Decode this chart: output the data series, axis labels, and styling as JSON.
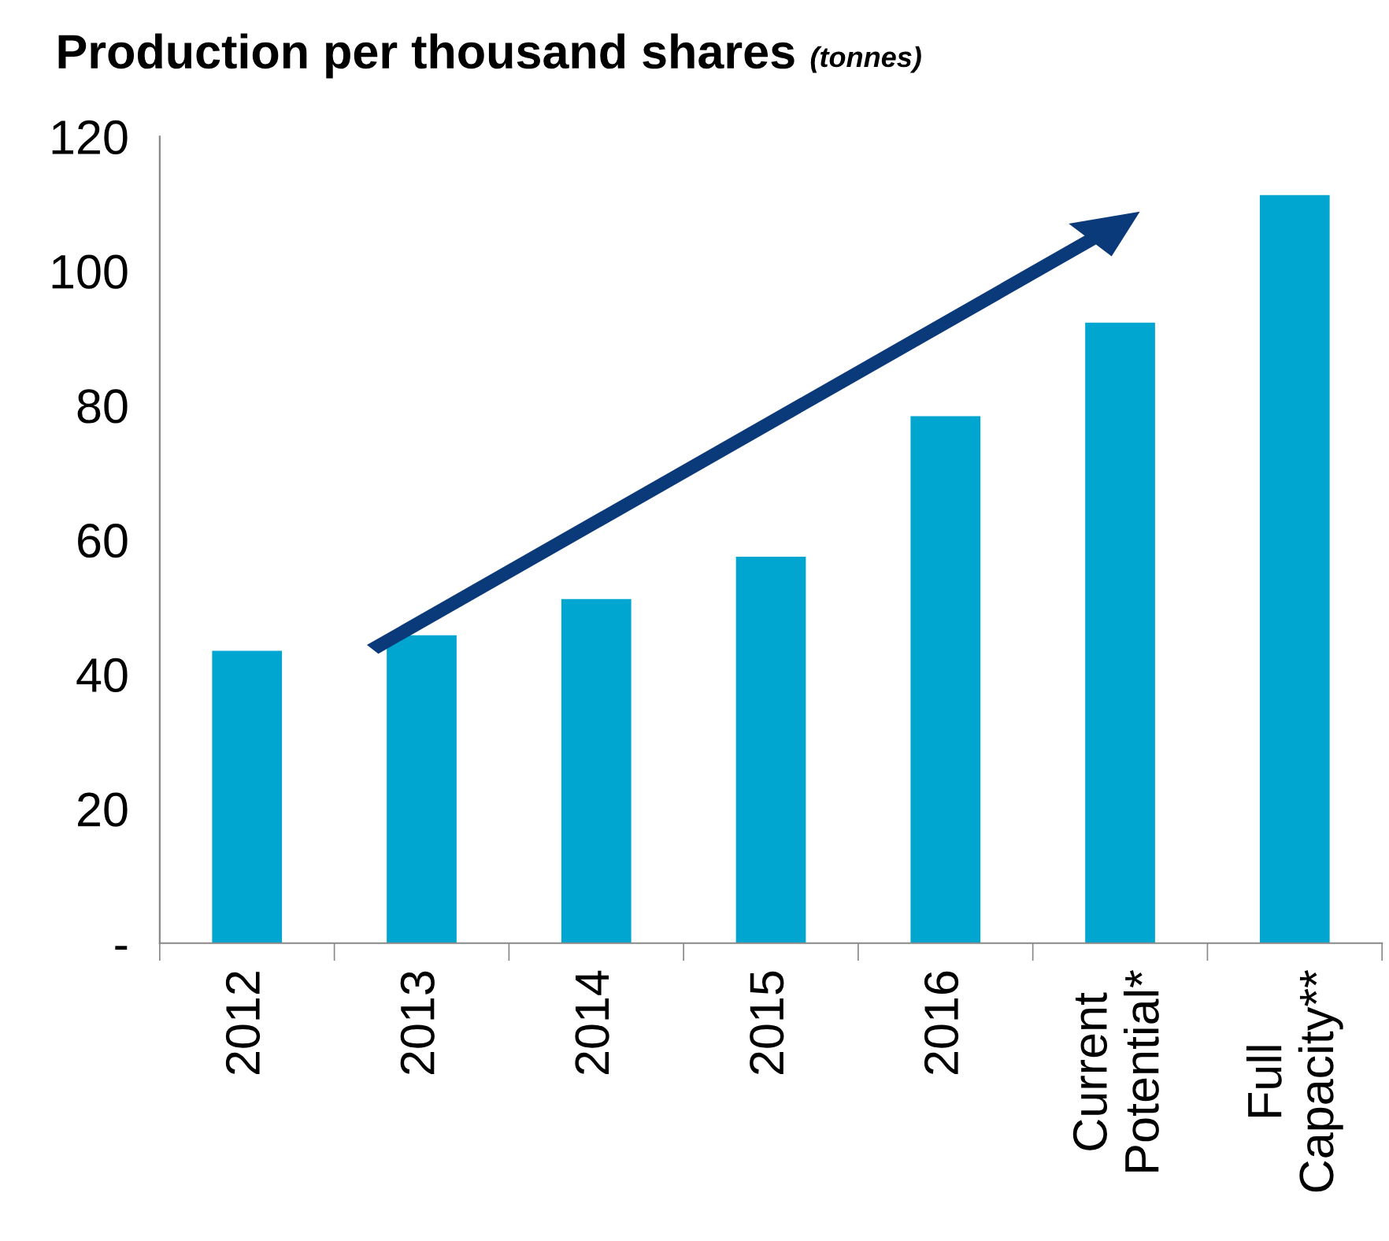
{
  "chart_data": {
    "type": "bar",
    "title": "Production per thousand shares",
    "subtitle": "(tonnes)",
    "categories": [
      "2012",
      "2013",
      "2014",
      "2015",
      "2016",
      "Current\nPotential*",
      "Full\nCapacity**"
    ],
    "values": [
      43.5,
      45.8,
      51.2,
      57.5,
      78.4,
      92.3,
      111.3
    ],
    "color": "#00a6d0",
    "ylim": [
      0,
      120
    ],
    "yticks": [
      {
        "value": 0,
        "label": "-"
      },
      20,
      40,
      60,
      80,
      100,
      120
    ],
    "grid": false,
    "legend": false
  }
}
